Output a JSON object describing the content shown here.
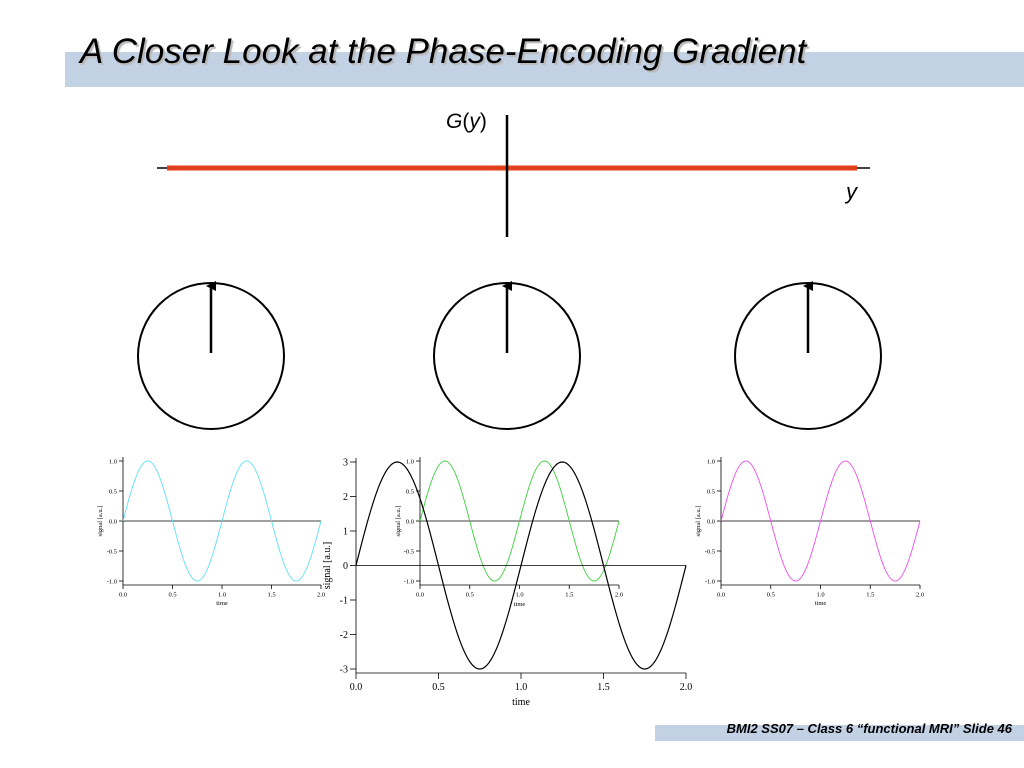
{
  "slide": {
    "title": "A Closer Look at the Phase-Encoding Gradient",
    "footer": "BMI2 SS07 – Class 6 “functional MRI” Slide 46"
  },
  "gradient": {
    "label_G": "G",
    "label_open": "(",
    "label_var": "y",
    "label_close": ")",
    "axis_label": "y",
    "line_color": "#e0401b"
  },
  "phase_dials": [
    {
      "name": "left",
      "angle_deg": 0
    },
    {
      "name": "center",
      "angle_deg": 0
    },
    {
      "name": "right",
      "angle_deg": 0
    }
  ],
  "chart_data": [
    {
      "type": "line",
      "id": "plot-left",
      "xlabel": "time",
      "ylabel": "signal [a.u.]",
      "xlim": [
        0.0,
        2.0
      ],
      "ylim": [
        -1.0,
        1.0
      ],
      "xticks": [
        "0.0",
        "0.5",
        "1.0",
        "1.5",
        "2.0"
      ],
      "yticks": [
        "1.0",
        "0.5",
        "0.0",
        "-0.5",
        "-1.0"
      ],
      "series": [
        {
          "function": "sin(2*pi*t)",
          "amplitude": 1.0,
          "frequency": 1.0,
          "t_range": [
            0.0,
            2.0
          ],
          "color": "#5fe0f5"
        }
      ]
    },
    {
      "type": "line",
      "id": "plot-center-inset",
      "xlabel": "time",
      "ylabel": "signal [a.u.]",
      "xlim": [
        0.0,
        2.0
      ],
      "ylim": [
        -1.0,
        1.0
      ],
      "xticks": [
        "0.0",
        "0.5",
        "1.0",
        "1.5",
        "2.0"
      ],
      "yticks": [
        "1.0",
        "0.5",
        "0.0",
        "-0.5",
        "-1.0"
      ],
      "series": [
        {
          "function": "sin(2*pi*t)",
          "amplitude": 1.0,
          "frequency": 1.0,
          "t_range": [
            0.0,
            2.0
          ],
          "color": "#3ecf3e"
        }
      ]
    },
    {
      "type": "line",
      "id": "plot-center-sum",
      "xlabel": "time",
      "ylabel": "signal [a.u.]",
      "xlim": [
        0.0,
        2.0
      ],
      "ylim": [
        -3,
        3
      ],
      "xticks": [
        "0.0",
        "0.5",
        "1.0",
        "1.5",
        "2.0"
      ],
      "yticks": [
        "3",
        "2",
        "1",
        "0",
        "-1",
        "-2",
        "-3"
      ],
      "series": [
        {
          "function": "sin(2*pi*t)",
          "amplitude": 3.0,
          "frequency": 1.0,
          "t_range": [
            0.0,
            2.0
          ],
          "color": "#000000"
        }
      ]
    },
    {
      "type": "line",
      "id": "plot-right",
      "xlabel": "time",
      "ylabel": "signal [a.u.]",
      "xlim": [
        0.0,
        2.0
      ],
      "ylim": [
        -1.0,
        1.0
      ],
      "xticks": [
        "0.0",
        "0.5",
        "1.0",
        "1.5",
        "2.0"
      ],
      "yticks": [
        "1.0",
        "0.5",
        "0.0",
        "-0.5",
        "-1.0"
      ],
      "series": [
        {
          "function": "sin(2*pi*t)",
          "amplitude": 1.0,
          "frequency": 1.0,
          "t_range": [
            0.0,
            2.0
          ],
          "color": "#ee4cee"
        }
      ]
    }
  ]
}
